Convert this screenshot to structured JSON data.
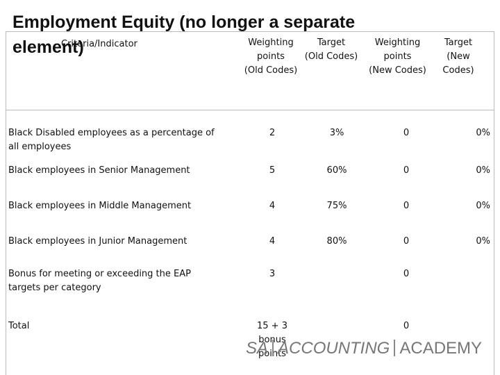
{
  "title": "Employment Equity (no longer a separate element)",
  "table": {
    "header": [
      "Criteria/Indicator",
      "Weighting\npoints\n(Old Codes)",
      "Target\n(Old Codes)",
      "Weighting\npoints\n(New Codes)",
      "Target\n(New\nCodes)"
    ],
    "rows": [
      [
        "Black Disabled employees as a percentage of all employees",
        "2",
        "3%",
        "0",
        "0%"
      ],
      [
        "Black employees in Senior Management",
        "5",
        "60%",
        "0",
        "0%"
      ],
      [
        "Black employees in Middle Management",
        "4",
        "75%",
        "0",
        "0%"
      ],
      [
        "Black employees in Junior Management",
        "4",
        "80%",
        "0",
        "0%"
      ],
      [
        "Bonus for meeting or exceeding the EAP targets per category",
        "3",
        null,
        "0",
        null
      ],
      [
        "Total",
        "15 + 3 bonus\npoints",
        null,
        "0",
        null
      ]
    ]
  },
  "logo": {
    "left": "SA",
    "middle": "ACCOUNTING",
    "right": "ACADEMY"
  }
}
